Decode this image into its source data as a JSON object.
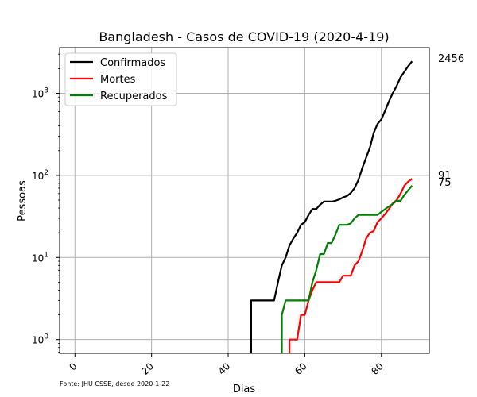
{
  "chart_data": {
    "type": "line",
    "title": "Bangladesh - Casos de COVID-19 (2020-4-19)",
    "xlabel": "Dias",
    "ylabel": "Pessoas",
    "yscale": "log",
    "xlim": [
      -4,
      92.5
    ],
    "ylim": [
      0.68,
      3600
    ],
    "x_ticks": [
      0,
      20,
      40,
      60,
      80
    ],
    "y_ticks": [
      {
        "value": 1,
        "label": "10^0"
      },
      {
        "value": 10,
        "label": "10^1"
      },
      {
        "value": 100,
        "label": "10^2"
      },
      {
        "value": 1000,
        "label": "10^3"
      }
    ],
    "grid": true,
    "legend_position": "top-left",
    "source_note": "Fonte: JHU CSSE, desde 2020-1-22",
    "end_labels": [
      "2456",
      "91",
      "75"
    ],
    "series": [
      {
        "name": "Confirmados",
        "color": "#000000",
        "points": [
          [
            46,
            0.5
          ],
          [
            46,
            3
          ],
          [
            52,
            3
          ],
          [
            53,
            5
          ],
          [
            54,
            8
          ],
          [
            55,
            10
          ],
          [
            56,
            14
          ],
          [
            57,
            17
          ],
          [
            58,
            20
          ],
          [
            59,
            25
          ],
          [
            60,
            27
          ],
          [
            61,
            33
          ],
          [
            62,
            39
          ],
          [
            63,
            39
          ],
          [
            64,
            44
          ],
          [
            65,
            48
          ],
          [
            66,
            48
          ],
          [
            67,
            48
          ],
          [
            68,
            49
          ],
          [
            69,
            51
          ],
          [
            70,
            54
          ],
          [
            71,
            56
          ],
          [
            72,
            61
          ],
          [
            73,
            70
          ],
          [
            74,
            88
          ],
          [
            75,
            123
          ],
          [
            76,
            164
          ],
          [
            77,
            218
          ],
          [
            78,
            330
          ],
          [
            79,
            424
          ],
          [
            80,
            482
          ],
          [
            81,
            621
          ],
          [
            82,
            803
          ],
          [
            83,
            1012
          ],
          [
            84,
            1231
          ],
          [
            85,
            1572
          ],
          [
            86,
            1838
          ],
          [
            87,
            2144
          ],
          [
            88,
            2456
          ]
        ]
      },
      {
        "name": "Mortes",
        "color": "#ff0000",
        "points": [
          [
            56,
            0.5
          ],
          [
            56,
            1
          ],
          [
            58,
            1
          ],
          [
            59,
            2
          ],
          [
            60,
            2
          ],
          [
            61,
            3
          ],
          [
            62,
            4
          ],
          [
            63,
            5
          ],
          [
            64,
            5
          ],
          [
            65,
            5
          ],
          [
            66,
            5
          ],
          [
            67,
            5
          ],
          [
            68,
            5
          ],
          [
            69,
            5
          ],
          [
            70,
            6
          ],
          [
            71,
            6
          ],
          [
            72,
            6
          ],
          [
            73,
            8
          ],
          [
            74,
            9
          ],
          [
            75,
            12
          ],
          [
            76,
            17
          ],
          [
            77,
            20
          ],
          [
            78,
            21
          ],
          [
            79,
            27
          ],
          [
            80,
            30
          ],
          [
            81,
            34
          ],
          [
            82,
            39
          ],
          [
            83,
            46
          ],
          [
            84,
            50
          ],
          [
            85,
            60
          ],
          [
            86,
            75
          ],
          [
            87,
            84
          ],
          [
            88,
            91
          ]
        ]
      },
      {
        "name": "Recuperados",
        "color": "#008000",
        "points": [
          [
            54,
            0.5
          ],
          [
            54,
            2
          ],
          [
            55,
            3
          ],
          [
            56,
            3
          ],
          [
            57,
            3
          ],
          [
            58,
            3
          ],
          [
            59,
            3
          ],
          [
            60,
            3
          ],
          [
            61,
            3
          ],
          [
            62,
            5
          ],
          [
            63,
            7
          ],
          [
            64,
            11
          ],
          [
            65,
            11
          ],
          [
            66,
            15
          ],
          [
            67,
            15
          ],
          [
            68,
            19
          ],
          [
            69,
            25
          ],
          [
            70,
            25
          ],
          [
            71,
            25
          ],
          [
            72,
            26
          ],
          [
            73,
            30
          ],
          [
            74,
            33
          ],
          [
            75,
            33
          ],
          [
            76,
            33
          ],
          [
            77,
            33
          ],
          [
            78,
            33
          ],
          [
            79,
            33
          ],
          [
            80,
            36
          ],
          [
            81,
            39
          ],
          [
            82,
            42
          ],
          [
            83,
            45
          ],
          [
            84,
            49
          ],
          [
            85,
            49
          ],
          [
            86,
            58
          ],
          [
            87,
            66
          ],
          [
            88,
            75
          ]
        ]
      }
    ]
  }
}
